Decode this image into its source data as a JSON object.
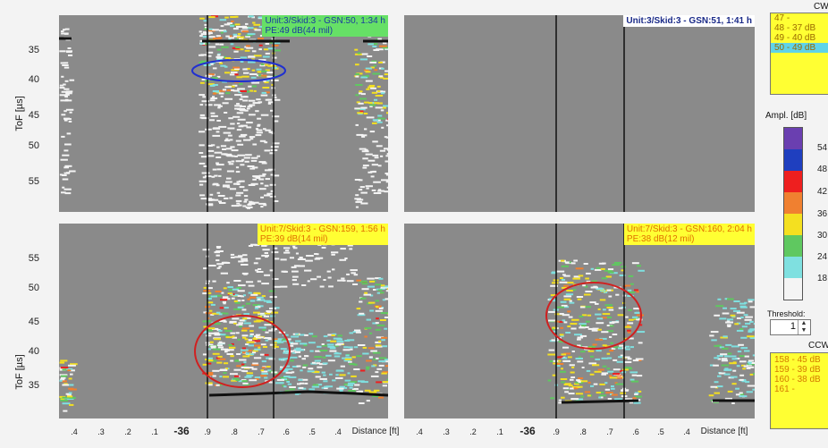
{
  "y_axis": {
    "label": "ToF [µs]",
    "top_ticks": [
      "35",
      "40",
      "45",
      "50",
      "55"
    ],
    "bottom_ticks": [
      "55",
      "50",
      "45",
      "40",
      "35"
    ]
  },
  "x_axis": {
    "ticks": [
      ".4",
      ".3",
      ".2",
      ".1",
      "-36",
      ".9",
      ".8",
      ".7",
      ".6",
      ".5",
      ".4"
    ],
    "bold_tick": "-36",
    "label": "Distance [ft]"
  },
  "panels": [
    {
      "title": "Unit:3/Skid:3 - GSN:50, 1:34 h",
      "subtitle": "PE:49 dB(44 mil)",
      "badge_color": "#66e066"
    },
    {
      "title": "Unit:3/Skid:3 - GSN:51, 1:41 h",
      "subtitle": "",
      "badge_color": "#ffffff"
    },
    {
      "title": "Unit:7/Skid:3 - GSN:159, 1:56 h",
      "subtitle": "PE:39 dB(14 mil)",
      "badge_color": "#ffff33"
    },
    {
      "title": "Unit:7/Skid:3 - GSN:160, 2:04 h",
      "subtitle": "PE:38 dB(12 mil)",
      "badge_color": "#ffff33"
    }
  ],
  "cw": {
    "header": "CW",
    "items": [
      "47 -",
      "48 - 37 dB",
      "49 - 40 dB",
      "50 - 49 dB"
    ],
    "selected_index": 3
  },
  "ampl": {
    "label": "Ampl. [dB]",
    "scale_labels": [
      "54",
      "48",
      "42",
      "36",
      "30",
      "24",
      "18"
    ],
    "colors": [
      "#6a3fb0",
      "#1f3fbf",
      "#ee1f1f",
      "#f08030",
      "#f4e020",
      "#5fc860",
      "#7fe0e0",
      "#f4f4f4"
    ]
  },
  "threshold": {
    "label": "Threshold:",
    "value": "1"
  },
  "ccw": {
    "header": "CCW",
    "items": [
      "158 - 45 dB",
      "159 - 39 dB",
      "160 - 38 dB",
      "161 -"
    ]
  }
}
